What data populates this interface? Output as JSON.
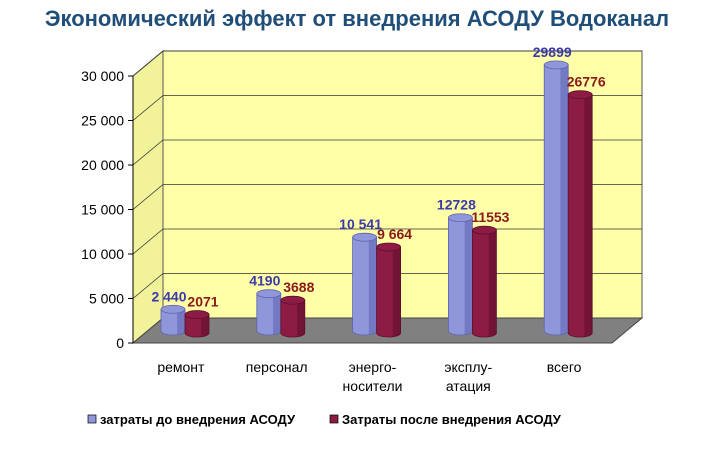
{
  "title": "Экономический эффект от внедрения АСОДУ Водоканал",
  "colors": {
    "series1": "#8f96d9",
    "series1_dark": "#5d63b0",
    "series2": "#8d1c44",
    "series2_dark": "#5c0f2b",
    "series1_label": "#3a3aaa",
    "series2_label": "#8a1a1a",
    "wall": "#ffffa8",
    "floor": "#808080",
    "title": "#1f4e79"
  },
  "chart_data": {
    "type": "bar",
    "categories": [
      "ремонт",
      "персонал",
      "энерго-\nносители",
      "эксплу-\nатация",
      "всего"
    ],
    "series": [
      {
        "name": "затраты до внедрения АСОДУ",
        "values": [
          2440,
          4190,
          10541,
          12728,
          29899
        ],
        "labels": [
          "2 440",
          "4190",
          "10 541",
          "12728",
          "29899"
        ]
      },
      {
        "name": "Затраты после внедрения АСОДУ",
        "values": [
          2071,
          3688,
          9664,
          11553,
          26776
        ],
        "labels": [
          "2071",
          "3688",
          "9 664",
          "11553",
          "26776"
        ]
      }
    ],
    "ylim": [
      0,
      30000
    ],
    "yticks": [
      0,
      5000,
      10000,
      15000,
      20000,
      25000,
      30000
    ],
    "ytick_labels": [
      "0",
      "5 000",
      "10 000",
      "15 000",
      "20 000",
      "25 000",
      "30 000"
    ],
    "grid": true,
    "legend_position": "bottom"
  }
}
